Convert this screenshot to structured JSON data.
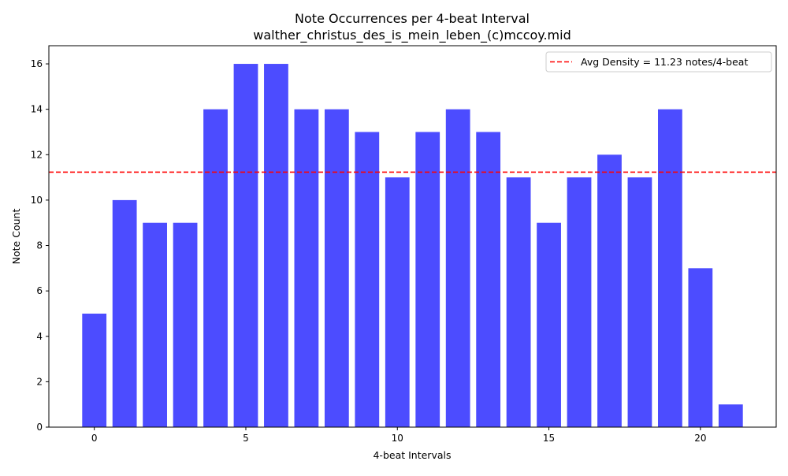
{
  "chart_data": {
    "type": "bar",
    "title": "Note Occurrences per 4-beat Interval",
    "subtitle": "walther_christus_des_is_mein_leben_(c)mccoy.mid",
    "xlabel": "4-beat Intervals",
    "ylabel": "Note Count",
    "x": [
      0,
      1,
      2,
      3,
      4,
      5,
      6,
      7,
      8,
      9,
      10,
      11,
      12,
      13,
      14,
      15,
      16,
      17,
      18,
      19,
      20,
      21
    ],
    "values": [
      5,
      10,
      9,
      9,
      14,
      16,
      16,
      14,
      14,
      13,
      11,
      13,
      14,
      13,
      11,
      9,
      11,
      12,
      11,
      14,
      7,
      1
    ],
    "bar_color": "#4c4cff",
    "xlim": [
      -1.5,
      22.5
    ],
    "ylim": [
      0,
      16.8
    ],
    "xticks": [
      0,
      5,
      10,
      15,
      20
    ],
    "yticks": [
      0,
      2,
      4,
      6,
      8,
      10,
      12,
      14,
      16
    ],
    "average_line": {
      "value": 11.23,
      "color": "#ff0000",
      "style": "dashed",
      "label": "Avg Density = 11.23 notes/4-beat"
    },
    "legend_position": "top-right",
    "grid": false
  }
}
